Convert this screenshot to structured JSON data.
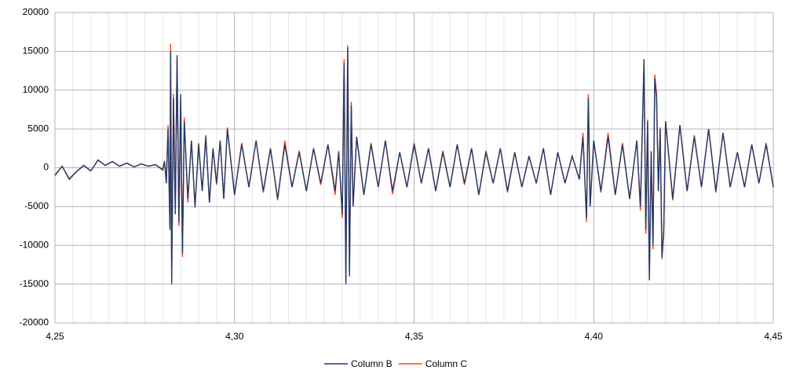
{
  "chart_data": {
    "type": "line",
    "x": [
      4.25,
      4.252,
      4.254,
      4.256,
      4.258,
      4.26,
      4.262,
      4.264,
      4.266,
      4.268,
      4.27,
      4.272,
      4.274,
      4.276,
      4.278,
      4.28,
      4.2805,
      4.281,
      4.2815,
      4.282,
      4.2822,
      4.2825,
      4.283,
      4.2835,
      4.284,
      4.2845,
      4.285,
      4.2855,
      4.286,
      4.287,
      4.288,
      4.289,
      4.29,
      4.291,
      4.292,
      4.293,
      4.294,
      4.295,
      4.296,
      4.297,
      4.298,
      4.3,
      4.302,
      4.304,
      4.306,
      4.308,
      4.31,
      4.312,
      4.314,
      4.316,
      4.318,
      4.32,
      4.322,
      4.324,
      4.326,
      4.328,
      4.329,
      4.33,
      4.3305,
      4.331,
      4.3315,
      4.332,
      4.3325,
      4.333,
      4.334,
      4.336,
      4.338,
      4.34,
      4.342,
      4.344,
      4.346,
      4.348,
      4.35,
      4.352,
      4.354,
      4.356,
      4.358,
      4.36,
      4.362,
      4.364,
      4.366,
      4.368,
      4.37,
      4.372,
      4.374,
      4.376,
      4.378,
      4.38,
      4.382,
      4.384,
      4.386,
      4.388,
      4.39,
      4.392,
      4.394,
      4.396,
      4.397,
      4.398,
      4.3985,
      4.399,
      4.4,
      4.402,
      4.404,
      4.406,
      4.408,
      4.41,
      4.412,
      4.413,
      4.414,
      4.4145,
      4.415,
      4.4155,
      4.416,
      4.4165,
      4.417,
      4.4175,
      4.418,
      4.4185,
      4.419,
      4.4195,
      4.42,
      4.422,
      4.424,
      4.426,
      4.428,
      4.43,
      4.432,
      4.434,
      4.436,
      4.438,
      4.44,
      4.442,
      4.444,
      4.446,
      4.448,
      4.45
    ],
    "series": [
      {
        "name": "Column B",
        "color": "#1f3b6e",
        "values": [
          -1000,
          200,
          -1500,
          -500,
          300,
          -400,
          1000,
          300,
          800,
          200,
          600,
          100,
          500,
          200,
          400,
          -300,
          800,
          -2000,
          5000,
          -8000,
          15000,
          -15000,
          9000,
          -6000,
          14500,
          -7000,
          9500,
          -11000,
          6000,
          -4000,
          3500,
          -5000,
          3000,
          -3000,
          4000,
          -4500,
          2500,
          -2000,
          3500,
          -4000,
          5000,
          -3500,
          3000,
          -2500,
          3500,
          -3000,
          2500,
          -4000,
          3000,
          -2500,
          2000,
          -3000,
          2500,
          -2000,
          3000,
          -3000,
          2000,
          -6000,
          13500,
          -15000,
          15500,
          -14000,
          8000,
          -5000,
          4000,
          -3500,
          3000,
          -2500,
          3500,
          -3000,
          2000,
          -2500,
          3000,
          -2000,
          2500,
          -3000,
          2000,
          -2500,
          3000,
          -2000,
          2500,
          -3500,
          2000,
          -2000,
          2500,
          -3000,
          2000,
          -2500,
          1500,
          -2000,
          2500,
          -3500,
          2000,
          -2000,
          1500,
          -1500,
          4000,
          -6500,
          9000,
          -5000,
          3500,
          -3000,
          4000,
          -3500,
          3000,
          -4000,
          3500,
          -5000,
          14000,
          -8000,
          6000,
          -14500,
          2000,
          -10000,
          11500,
          9000,
          -3000,
          5000,
          -11500,
          -8000,
          6000,
          -4000,
          5500,
          -3000,
          4000,
          -2500,
          5000,
          -3000,
          4500,
          -2500,
          2000,
          -2500,
          3000,
          -2000,
          3000,
          -2500
        ]
      },
      {
        "name": "Column C",
        "color": "#ff420e",
        "values": [
          -900,
          200,
          -1400,
          -500,
          300,
          -400,
          1000,
          300,
          800,
          200,
          600,
          100,
          500,
          200,
          400,
          -200,
          900,
          -1800,
          5500,
          -7500,
          16000,
          -14000,
          9500,
          -5500,
          14000,
          -7500,
          9000,
          -11500,
          6500,
          -4500,
          3500,
          -5200,
          3200,
          -3000,
          4200,
          -4500,
          2500,
          -2200,
          3500,
          -4000,
          5200,
          -3500,
          3200,
          -2500,
          3500,
          -3200,
          2500,
          -4200,
          3500,
          -2500,
          2200,
          -3000,
          2500,
          -2200,
          3000,
          -3500,
          2200,
          -6500,
          14000,
          -14500,
          15800,
          -13500,
          8500,
          -5000,
          4000,
          -3500,
          3200,
          -2500,
          3500,
          -3400,
          2000,
          -2500,
          3200,
          -2000,
          2500,
          -3000,
          2200,
          -2500,
          3000,
          -2200,
          2500,
          -3500,
          2200,
          -2000,
          2500,
          -3200,
          2000,
          -2500,
          1500,
          -2000,
          2500,
          -3500,
          2000,
          -2000,
          1500,
          -1500,
          4500,
          -7000,
          9500,
          -5000,
          3500,
          -3200,
          4500,
          -3500,
          3200,
          -4000,
          3500,
          -5500,
          13500,
          -8500,
          6200,
          -13500,
          2200,
          -10500,
          12000,
          9500,
          -3000,
          5200,
          -11800,
          -8500,
          6000,
          -4200,
          5500,
          -3000,
          4200,
          -2500,
          5000,
          -3200,
          4500,
          -2500,
          2000,
          -2500,
          3000,
          -2000,
          3200,
          -2500
        ]
      }
    ],
    "xlim": [
      4.25,
      4.45
    ],
    "xticks": [
      {
        "value": 4.25,
        "label": "4,25"
      },
      {
        "value": 4.3,
        "label": "4,30"
      },
      {
        "value": 4.35,
        "label": "4,35"
      },
      {
        "value": 4.4,
        "label": "4,40"
      },
      {
        "value": 4.45,
        "label": "4,45"
      }
    ],
    "xminorticks": [
      4.255,
      4.26,
      4.265,
      4.27,
      4.275,
      4.28,
      4.285,
      4.29,
      4.295,
      4.305,
      4.31,
      4.315,
      4.32,
      4.325,
      4.33,
      4.335,
      4.34,
      4.345,
      4.355,
      4.36,
      4.365,
      4.37,
      4.375,
      4.38,
      4.385,
      4.39,
      4.395,
      4.405,
      4.41,
      4.415,
      4.42,
      4.425,
      4.43,
      4.435,
      4.44,
      4.445
    ],
    "ylim": [
      -20000,
      20000
    ],
    "yticks": [
      -20000,
      -15000,
      -10000,
      -5000,
      0,
      5000,
      10000,
      15000,
      20000
    ],
    "grid": true,
    "legend": "bottom"
  }
}
